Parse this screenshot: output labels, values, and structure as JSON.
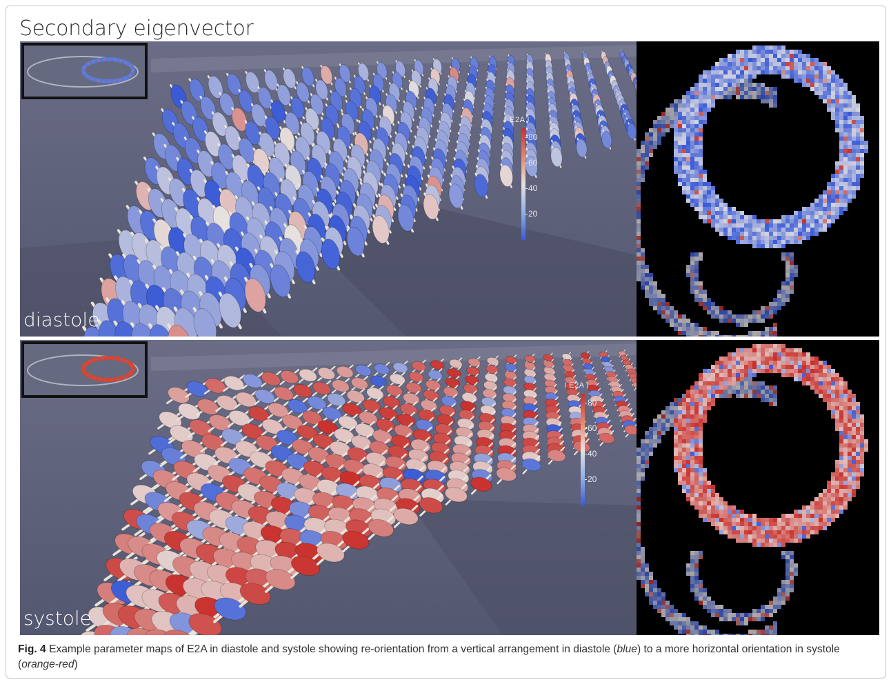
{
  "figure": {
    "title": "Secondary eigenvector",
    "caption": {
      "label": "Fig. 4",
      "text_1": " Example parameter maps of E2A in diastole and systole showing re-orientation from a vertical arrangement in diastole (",
      "blue": "blue",
      "text_2": ") to a more horizontal orientation in systole (",
      "orange_red": "orange-red",
      "text_3": ")"
    }
  },
  "panels": [
    {
      "id": "diastole",
      "label": "diastole",
      "colorbar": {
        "title": "I E2A I",
        "ticks": [
          "80",
          "60",
          "40",
          "20"
        ]
      },
      "dominant_color": "#3a5bd6"
    },
    {
      "id": "systole",
      "label": "systole",
      "colorbar": {
        "title": "I E2A I",
        "ticks": [
          "80",
          "60",
          "40",
          "20"
        ]
      },
      "dominant_color": "#d9452f"
    }
  ],
  "colorscale": {
    "high": "#c9302c",
    "mid": "#e6e2e0",
    "low": "#3a5bd6",
    "background": "#60637a"
  }
}
